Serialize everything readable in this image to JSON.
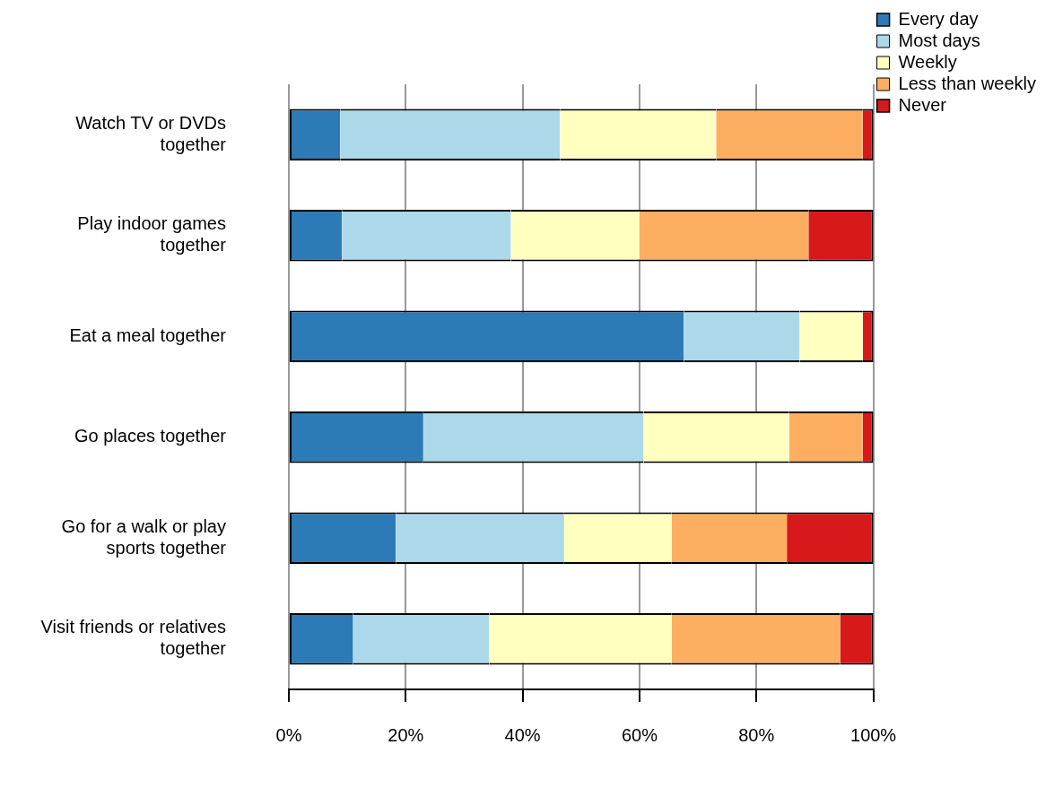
{
  "chart_data": {
    "type": "bar",
    "orientation": "horizontal",
    "stacked": true,
    "categories": [
      "Watch TV or DVDs together",
      "Play indoor games together",
      "Eat a meal together",
      "Go places together",
      "Go for a walk or play sports together",
      "Visit friends or relatives together"
    ],
    "series": [
      {
        "name": "Every day",
        "color": "#2c7bb6",
        "values": [
          8.8,
          9.1,
          67.6,
          23.0,
          18.3,
          11.0
        ]
      },
      {
        "name": "Most days",
        "color": "#abd9e9",
        "values": [
          37.6,
          28.9,
          19.8,
          37.7,
          28.8,
          23.3
        ]
      },
      {
        "name": "Weekly",
        "color": "#ffffbf",
        "values": [
          26.7,
          22.0,
          10.8,
          24.9,
          18.4,
          31.2
        ]
      },
      {
        "name": "Less than weekly",
        "color": "#fdae61",
        "values": [
          25.1,
          28.9,
          0,
          12.6,
          19.7,
          28.8
        ]
      },
      {
        "name": "Never",
        "color": "#d7191c",
        "values": [
          1.8,
          11.1,
          1.8,
          1.8,
          14.8,
          5.7
        ]
      }
    ],
    "xlim": [
      0,
      100
    ],
    "xticks": [
      {
        "value": 0,
        "label": "0%"
      },
      {
        "value": 20,
        "label": "20%"
      },
      {
        "value": 40,
        "label": "40%"
      },
      {
        "value": 60,
        "label": "60%"
      },
      {
        "value": 80,
        "label": "80%"
      },
      {
        "value": 100,
        "label": "100%"
      }
    ],
    "grid": "x",
    "legend": "top right"
  }
}
